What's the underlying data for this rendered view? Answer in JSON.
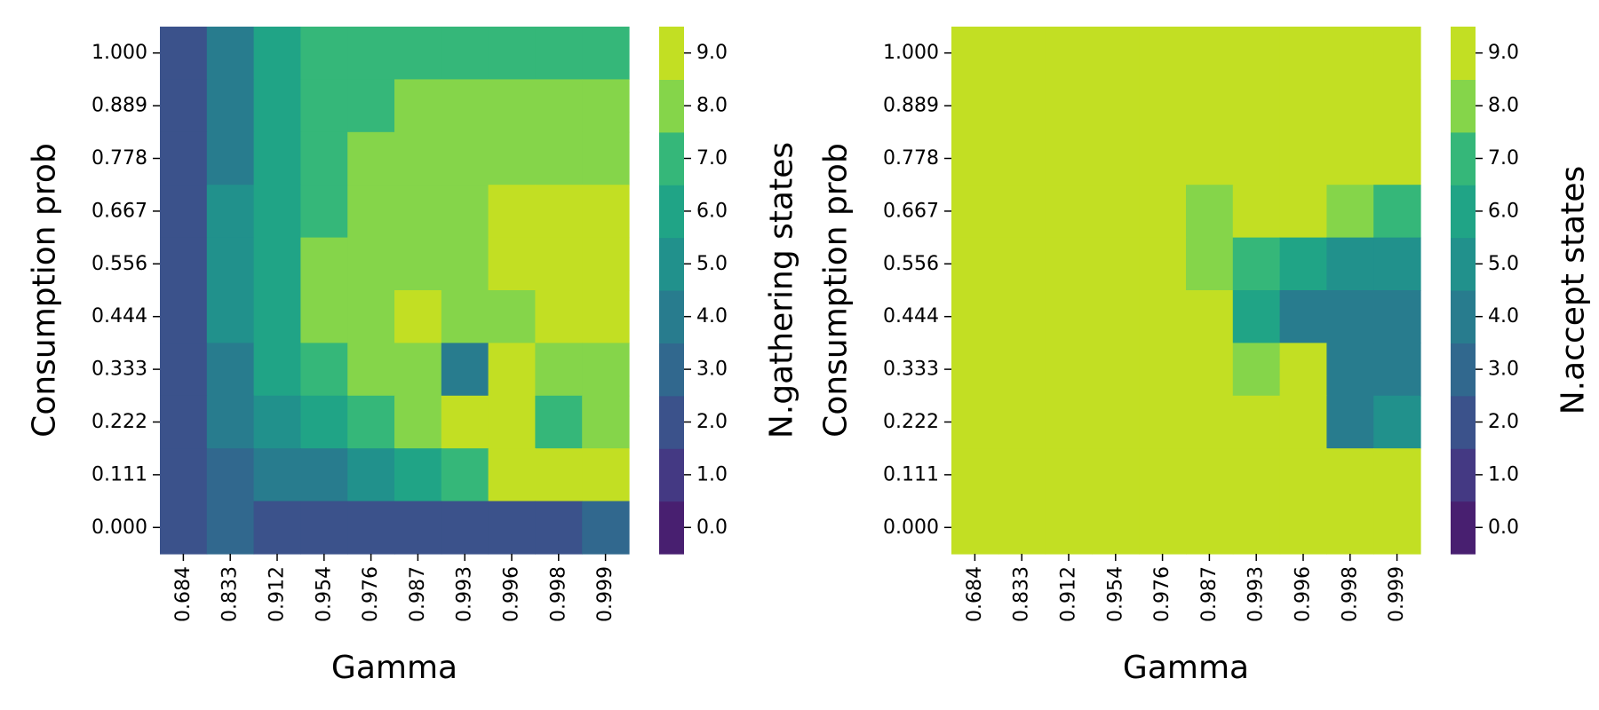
{
  "chart_data": [
    {
      "type": "heatmap",
      "title": "",
      "xlabel": "Gamma",
      "ylabel": "Consumption prob",
      "x_categories": [
        "0.684",
        "0.833",
        "0.912",
        "0.954",
        "0.976",
        "0.987",
        "0.993",
        "0.996",
        "0.998",
        "0.999"
      ],
      "y_categories": [
        "1.000",
        "0.889",
        "0.778",
        "0.667",
        "0.556",
        "0.444",
        "0.333",
        "0.222",
        "0.111",
        "0.000"
      ],
      "values": [
        [
          2,
          4,
          6,
          7,
          7,
          7,
          7,
          7,
          7,
          7
        ],
        [
          2,
          4,
          6,
          7,
          7,
          8,
          8,
          8,
          8,
          8
        ],
        [
          2,
          4,
          6,
          7,
          8,
          8,
          8,
          8,
          8,
          8
        ],
        [
          2,
          5,
          6,
          7,
          8,
          8,
          8,
          9,
          9,
          9
        ],
        [
          2,
          5,
          6,
          8,
          8,
          8,
          8,
          9,
          9,
          9
        ],
        [
          2,
          5,
          6,
          8,
          8,
          9,
          8,
          8,
          9,
          9
        ],
        [
          2,
          4,
          6,
          7,
          8,
          8,
          4,
          9,
          8,
          8
        ],
        [
          2,
          4,
          5,
          6,
          7,
          8,
          9,
          9,
          7,
          8
        ],
        [
          2,
          3,
          4,
          4,
          5,
          6,
          7,
          9,
          9,
          9
        ],
        [
          2,
          3,
          2,
          2,
          2,
          2,
          2,
          2,
          2,
          3
        ]
      ],
      "colorbar": {
        "label": "N.gathering states",
        "ticks": [
          "0.0",
          "1.0",
          "2.0",
          "3.0",
          "4.0",
          "5.0",
          "6.0",
          "7.0",
          "8.0",
          "9.0"
        ],
        "range": [
          0,
          9
        ]
      }
    },
    {
      "type": "heatmap",
      "title": "",
      "xlabel": "Gamma",
      "ylabel": "Consumption prob",
      "x_categories": [
        "0.684",
        "0.833",
        "0.912",
        "0.954",
        "0.976",
        "0.987",
        "0.993",
        "0.996",
        "0.998",
        "0.999"
      ],
      "y_categories": [
        "1.000",
        "0.889",
        "0.778",
        "0.667",
        "0.556",
        "0.444",
        "0.333",
        "0.222",
        "0.111",
        "0.000"
      ],
      "values": [
        [
          9,
          9,
          9,
          9,
          9,
          9,
          9,
          9,
          9,
          9
        ],
        [
          9,
          9,
          9,
          9,
          9,
          9,
          9,
          9,
          9,
          9
        ],
        [
          9,
          9,
          9,
          9,
          9,
          9,
          9,
          9,
          9,
          9
        ],
        [
          9,
          9,
          9,
          9,
          9,
          8,
          9,
          9,
          8,
          7
        ],
        [
          9,
          9,
          9,
          9,
          9,
          8,
          7,
          6,
          5,
          5
        ],
        [
          9,
          9,
          9,
          9,
          9,
          9,
          6,
          4,
          4,
          4
        ],
        [
          9,
          9,
          9,
          9,
          9,
          9,
          8,
          9,
          4,
          4
        ],
        [
          9,
          9,
          9,
          9,
          9,
          9,
          9,
          9,
          4,
          5
        ],
        [
          9,
          9,
          9,
          9,
          9,
          9,
          9,
          9,
          9,
          9
        ],
        [
          9,
          9,
          9,
          9,
          9,
          9,
          9,
          9,
          9,
          9
        ]
      ],
      "colorbar": {
        "label": "N.accept states",
        "ticks": [
          "0.0",
          "1.0",
          "2.0",
          "3.0",
          "4.0",
          "5.0",
          "6.0",
          "7.0",
          "8.0",
          "9.0"
        ],
        "range": [
          0,
          9
        ]
      }
    }
  ],
  "colors": {
    "palette": [
      "#481f70",
      "#443983",
      "#3b528b",
      "#31688e",
      "#287c8e",
      "#21918c",
      "#20a486",
      "#35b779",
      "#5ec962",
      "#c2df23"
    ],
    "palette_note_9": "#c2df23",
    "palette_8": "#85d54a"
  }
}
